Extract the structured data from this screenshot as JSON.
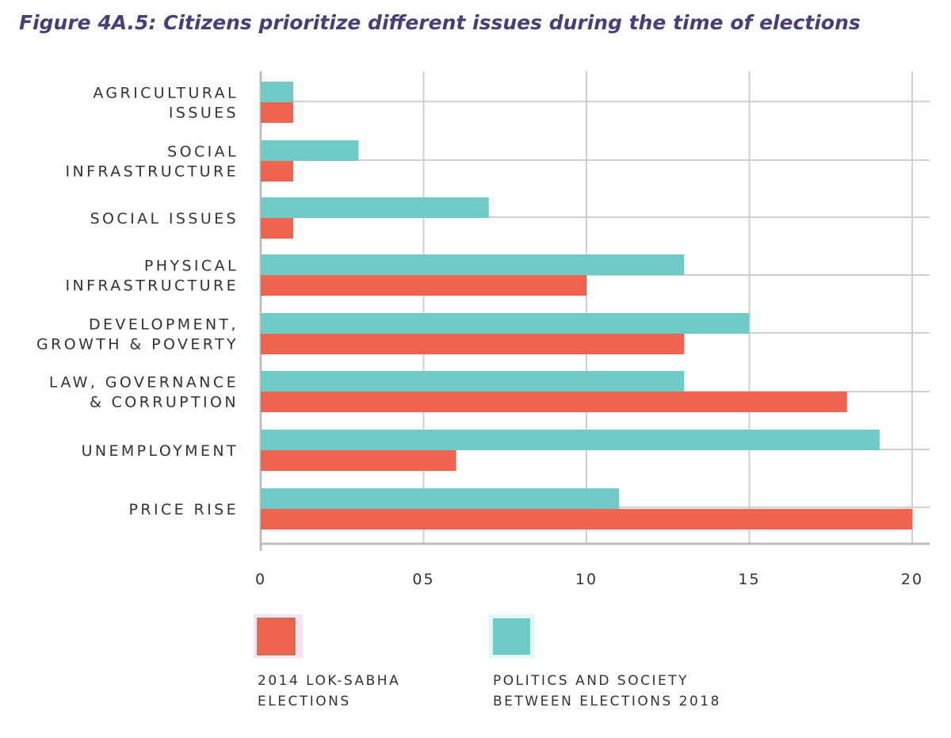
{
  "title": "Figure 4A.5: Citizens prioritize different issues during the time of elections",
  "chart_data": {
    "type": "bar",
    "orientation": "horizontal",
    "title": "Figure 4A.5: Citizens prioritize different issues during the time of elections",
    "categories": [
      [
        "AGRICULTURAL",
        "ISSUES"
      ],
      [
        "SOCIAL",
        "INFRASTRUCTURE"
      ],
      [
        "SOCIAL ISSUES"
      ],
      [
        "PHYSICAL",
        "INFRASTRUCTURE"
      ],
      [
        "DEVELOPMENT,",
        "GROWTH & POVERTY"
      ],
      [
        "LAW, GOVERNANCE",
        "& CORRUPTION"
      ],
      [
        "UNEMPLOYMENT"
      ],
      [
        "PRICE RISE"
      ]
    ],
    "series": [
      {
        "name": "POLITICS AND SOCIETY BETWEEN ELECTIONS 2018",
        "legend_lines": [
          "POLITICS AND SOCIETY",
          "BETWEEN ELECTIONS 2018"
        ],
        "color": "#70cac6",
        "values": [
          1,
          3,
          7,
          13,
          15,
          13,
          19,
          11
        ]
      },
      {
        "name": "2014 LOK-SABHA ELECTIONS",
        "legend_lines": [
          "2014 LOK-SABHA",
          "ELECTIONS"
        ],
        "color": "#ee6451",
        "values": [
          1,
          1,
          1,
          10,
          13,
          18,
          6,
          20
        ]
      }
    ],
    "xticks": [
      "0",
      "05",
      "10",
      "15",
      "20"
    ],
    "xlim": [
      0,
      20
    ],
    "xlabel": "",
    "ylabel": "",
    "grid": true,
    "legend_position": "bottom"
  }
}
